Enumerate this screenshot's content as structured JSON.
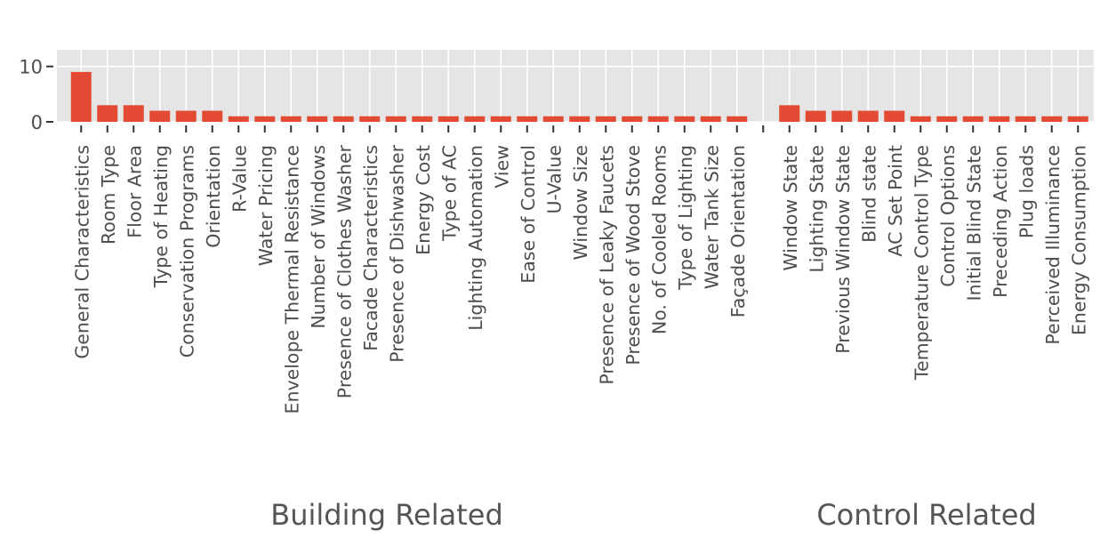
{
  "colors": {
    "bar": "#E24A33",
    "panel": "#E5E5E5",
    "grid": "#FFFFFF",
    "text": "#4D4D4D"
  },
  "chart_data": {
    "type": "bar",
    "grid": true,
    "ylim": [
      0,
      13
    ],
    "yticks": [
      0,
      10
    ],
    "groups": [
      {
        "name": "Building Related",
        "categories": [
          "General Characteristics",
          "Room Type",
          "Floor Area",
          "Type of Heating",
          "Conservation Programs",
          "Orientation",
          "R-Value",
          "Water Pricing",
          "Envelope Thermal Resistance",
          "Number of Windows",
          "Presence of Clothes Washer",
          "Facade Characteristics",
          "Presence of Dishwasher",
          "Energy Cost",
          "Type of AC",
          "Lighting Automation",
          "View",
          "Ease of Control",
          "U-Value",
          "Window Size",
          "Presence of Leaky Faucets",
          "Presence of Wood Stove",
          "No. of Cooled Rooms",
          "Type of Lighting",
          "Water Tank Size",
          "Façade Orientation"
        ],
        "values": [
          9,
          3,
          3,
          2,
          2,
          2,
          1,
          1,
          1,
          1,
          1,
          1,
          1,
          1,
          1,
          1,
          1,
          1,
          1,
          1,
          1,
          1,
          1,
          1,
          1,
          1
        ]
      },
      {
        "name": "Control Related",
        "categories": [
          "Window State",
          "Lighting State",
          "Previous Window State",
          "Blind state",
          "AC Set Point",
          "Temperature Control Type",
          "Control Options",
          "Initial Blind State",
          "Preceding Action",
          "Plug loads",
          "Perceived Illuminance",
          "Energy Consumption"
        ],
        "values": [
          3,
          2,
          2,
          2,
          2,
          1,
          1,
          1,
          1,
          1,
          1,
          1
        ]
      }
    ]
  }
}
